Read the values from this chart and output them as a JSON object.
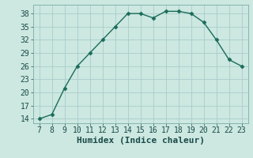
{
  "x": [
    7,
    8,
    9,
    10,
    11,
    12,
    13,
    14,
    15,
    16,
    17,
    18,
    19,
    20,
    21,
    22,
    23
  ],
  "y": [
    14,
    15,
    21,
    26,
    29,
    32,
    35,
    38,
    38,
    37,
    38.5,
    38.5,
    38,
    36,
    32,
    27.5,
    26
  ],
  "line_color": "#1a6b5a",
  "marker": "D",
  "marker_size": 2.5,
  "background_color": "#cce8e0",
  "grid_color": "#aacccc",
  "xlabel": "Humidex (Indice chaleur)",
  "xlabel_fontsize": 8,
  "tick_fontsize": 7,
  "xlim": [
    6.5,
    23.5
  ],
  "ylim": [
    13,
    40
  ],
  "yticks": [
    14,
    17,
    20,
    23,
    26,
    29,
    32,
    35,
    38
  ],
  "xticks": [
    7,
    8,
    9,
    10,
    11,
    12,
    13,
    14,
    15,
    16,
    17,
    18,
    19,
    20,
    21,
    22,
    23
  ]
}
